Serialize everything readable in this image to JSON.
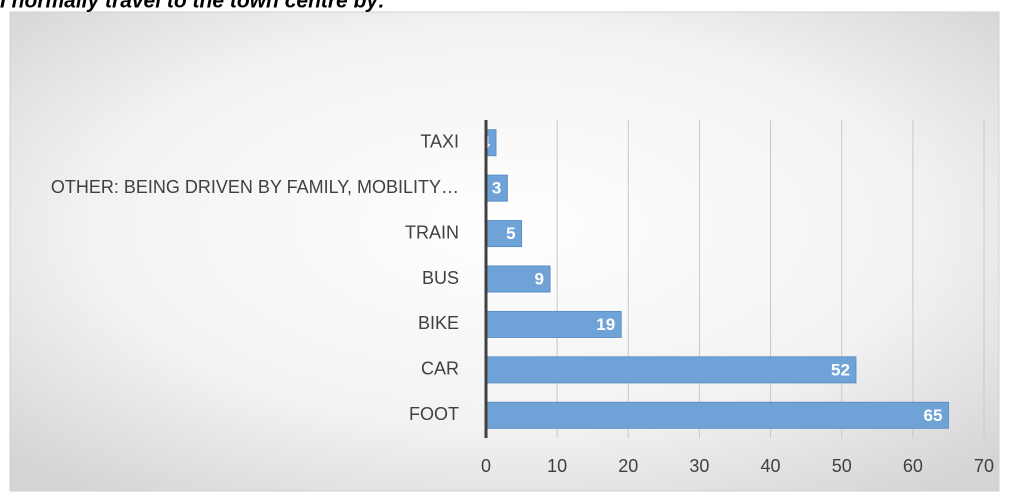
{
  "chart_data": {
    "type": "bar",
    "orientation": "horizontal",
    "title": "I normally travel to the town centre by:",
    "categories": [
      "TAXI",
      "OTHER: BEING DRIVEN BY FAMILY, MOBILITY…",
      "TRAIN",
      "BUS",
      "BIKE",
      "CAR",
      "FOOT"
    ],
    "values": [
      1.4,
      3,
      5,
      9,
      19,
      52,
      65
    ],
    "color": "#6fa3d8",
    "xlim": [
      0,
      70
    ],
    "xticks": [
      0,
      10,
      20,
      30,
      40,
      50,
      60,
      70
    ],
    "grid": true
  }
}
